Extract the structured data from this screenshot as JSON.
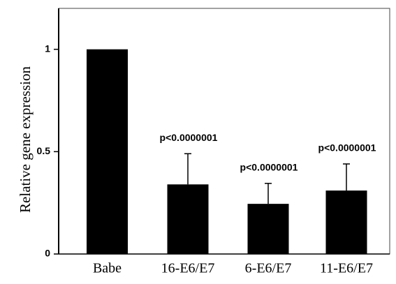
{
  "chart_data": {
    "type": "bar",
    "y_label": "Relative gene expression",
    "categories": [
      "Babe",
      "16-E6/E7",
      "6-E6/E7",
      "11-E6/E7"
    ],
    "values": [
      1,
      0.34,
      0.245,
      0.31
    ],
    "errors": [
      null,
      0.15,
      0.1,
      0.13
    ],
    "annotations": [
      null,
      "p<0.0000001",
      "p<0.0000001",
      "p<0.0000001"
    ],
    "color": "#000000",
    "ylim": [
      0,
      1.2
    ],
    "yticks": [
      0,
      0.5,
      1
    ],
    "grid": false
  }
}
